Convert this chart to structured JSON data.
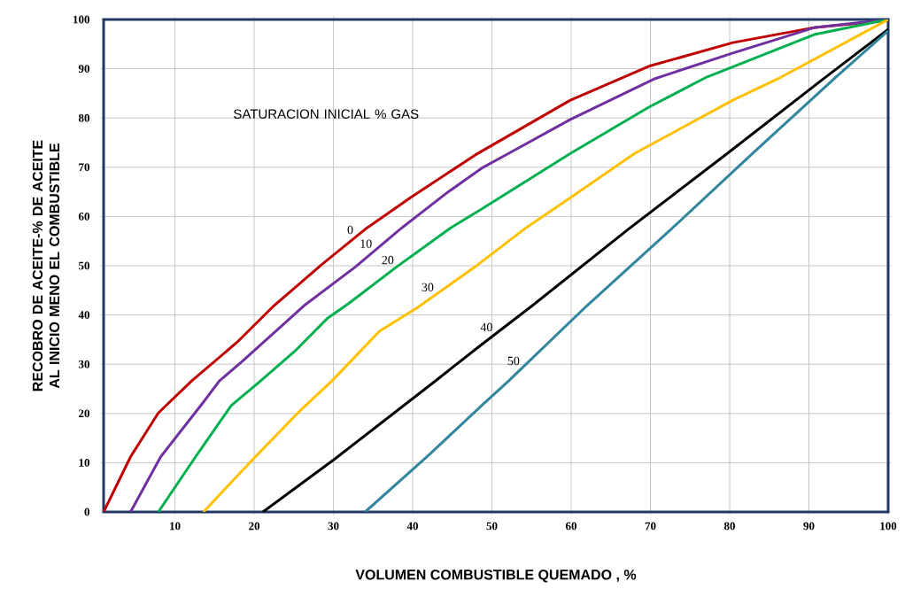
{
  "chart_data": {
    "type": "line",
    "xlabel": "VOLUMEN COMBUSTIBLE QUEMADO , %",
    "ylabel": "RECOBRO DE ACEITE-% DE ACEITE AL INICIO MENO EL COMBUSTIBLE",
    "xlim": [
      1,
      100
    ],
    "ylim": [
      0,
      100
    ],
    "xticks": [
      10,
      20,
      30,
      40,
      50,
      60,
      70,
      80,
      90,
      100
    ],
    "yticks": [
      0,
      10,
      20,
      30,
      40,
      50,
      60,
      70,
      80,
      90,
      100
    ],
    "grid": true,
    "marker": "none",
    "line_style": "solid",
    "annotations": [
      "SATURACION INICIAL % GAS"
    ],
    "series": [
      {
        "name": "0",
        "color": "#c00000",
        "x": [
          1,
          4.4,
          7.9,
          12.1,
          17.8,
          22.5,
          28.5,
          34,
          39.7,
          47.9,
          59.9,
          69.8,
          80.4,
          90.8,
          100
        ],
        "values": [
          0,
          11.2,
          20.1,
          26.6,
          34.4,
          41.9,
          50.2,
          57.4,
          63.8,
          72.5,
          83.6,
          90.5,
          95.3,
          98.4,
          99.8
        ]
      },
      {
        "name": "10",
        "color": "#7030a0",
        "x": [
          4.4,
          8.2,
          13.4,
          15.6,
          18.5,
          26.3,
          32.8,
          38.4,
          44.4,
          48.7,
          52.1,
          59.9,
          70.6,
          80.4,
          90.8,
          100
        ],
        "values": [
          0,
          11.2,
          21.9,
          26.6,
          30.6,
          41.9,
          49.8,
          57.4,
          64.9,
          69.8,
          72.8,
          79.7,
          88,
          93.2,
          98.4,
          100
        ]
      },
      {
        "name": "20",
        "color": "#00b050",
        "x": [
          7.9,
          12.6,
          17.1,
          20.8,
          25.1,
          29.3,
          31.9,
          38,
          44.8,
          48.7,
          59.9,
          69.8,
          77.1,
          90.8,
          100
        ],
        "values": [
          0,
          11.2,
          21.6,
          26.6,
          32.6,
          39.4,
          42.3,
          49.8,
          57.7,
          61.5,
          72.8,
          82.2,
          88.3,
          97,
          100
        ]
      },
      {
        "name": "30",
        "color": "#ffc000",
        "x": [
          13.6,
          19.9,
          26,
          29.8,
          35.8,
          40.6,
          47.9,
          54.3,
          59.9,
          68,
          80.4,
          86.5,
          100
        ],
        "values": [
          0,
          10.8,
          20.9,
          26.6,
          36.7,
          41.5,
          49.8,
          57.7,
          63.8,
          72.8,
          83.6,
          88.3,
          100
        ]
      },
      {
        "name": "40",
        "color": "#000000",
        "x": [
          21.1,
          30.2,
          42.7,
          48.7,
          55.1,
          67.2,
          79.7,
          91.7,
          100
        ],
        "values": [
          0,
          10.8,
          26.4,
          34,
          41.9,
          57.4,
          72.8,
          87.8,
          98
        ]
      },
      {
        "name": "50",
        "color": "#31859c",
        "x": [
          34,
          41.8,
          48.7,
          52.1,
          62,
          72.6,
          82.9,
          93.4,
          100
        ],
        "values": [
          0,
          11.2,
          21.6,
          26.6,
          41.9,
          57.4,
          72.8,
          88.3,
          97.7
        ]
      }
    ]
  }
}
